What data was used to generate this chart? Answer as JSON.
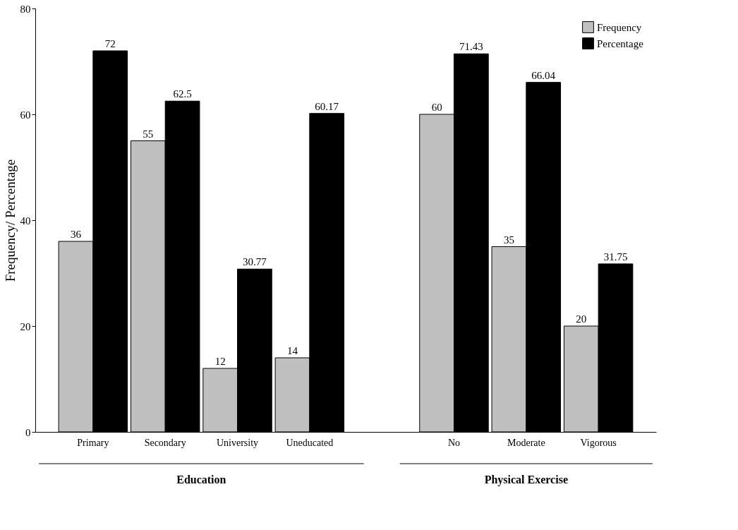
{
  "chart_data": {
    "type": "bar",
    "ylabel": "Frequency/ Percentage",
    "categories": [
      "Primary",
      "Secondary",
      "University",
      "Uneducated",
      null,
      "No",
      "Moderate",
      "Vigorous"
    ],
    "series": [
      {
        "name": "Frequency",
        "color": "#c0c0c0",
        "values": [
          36,
          55,
          12,
          14,
          null,
          60,
          35,
          20
        ]
      },
      {
        "name": "Percentage",
        "color": "#000000",
        "values": [
          72,
          62.5,
          30.77,
          60.17,
          null,
          71.43,
          66.04,
          31.75
        ]
      }
    ],
    "ylim": [
      0,
      80
    ],
    "yticks": [
      0,
      20,
      40,
      60,
      80
    ],
    "grid": false,
    "legend": "top right",
    "data_labels": true,
    "annotations": [
      "Education",
      "Physical Exercise"
    ]
  }
}
